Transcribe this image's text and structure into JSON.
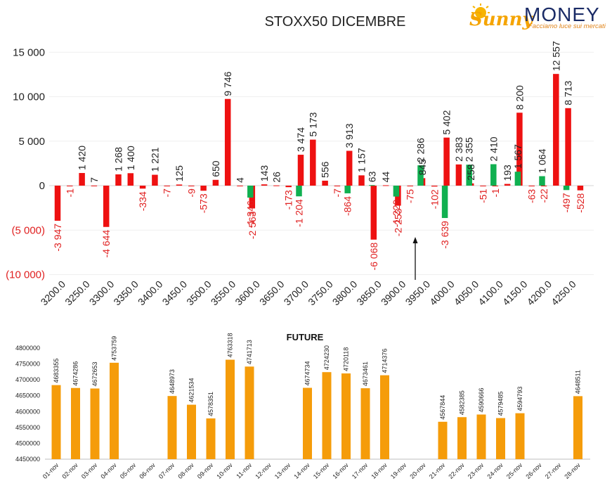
{
  "logo": {
    "brand_left": "Sunny",
    "brand_right": "MONEY",
    "tagline": "Facciamo luce sui mercati",
    "colors": {
      "sunny": "#f5a400",
      "money": "#1a2b66",
      "tagline": "#e0841a"
    }
  },
  "colors": {
    "positive_red": "#ee1111",
    "positive_green": "#10b050",
    "negative_label": "#e02020",
    "future_bar": "#f59c0a",
    "text": "#222222"
  },
  "chart_data": [
    {
      "type": "bar",
      "title": "STOXX50 DICEMBRE",
      "xlabel": "",
      "ylabel": "",
      "ylim": [
        -10000,
        15000
      ],
      "y_ticks": [
        "15 000",
        "10 000",
        "5 000",
        "0",
        "(5 000)",
        "(10 000)"
      ],
      "y_tick_values": [
        15000,
        10000,
        5000,
        0,
        -5000,
        -10000
      ],
      "x_tick_labels": [
        "3200.0",
        "3250.0",
        "3300.0",
        "3350.0",
        "3400.0",
        "3450.0",
        "3500.0",
        "3550.0",
        "3600.0",
        "3650.0",
        "3700.0",
        "3750.0",
        "3800.0",
        "3850.0",
        "3900.0",
        "3950.0",
        "4000.0",
        "4050.0",
        "4100.0",
        "4150.0",
        "4200.0",
        "4250.0"
      ],
      "grid": true,
      "legend": "none",
      "annotation": "arrow pointing at 3950.0",
      "series": [
        {
          "color": "red",
          "strikes": [
            3200,
            3225,
            3250,
            3275,
            3300,
            3325,
            3350,
            3375,
            3400,
            3425,
            3450,
            3475,
            3500,
            3525,
            3550,
            3575,
            3600,
            3625,
            3650,
            3675,
            3700,
            3725,
            3750,
            3775,
            3800,
            3825,
            3850,
            3875,
            3900,
            3925,
            3950,
            3975,
            4000,
            4025,
            4050,
            4075,
            4100,
            4125,
            4150,
            4175,
            4200,
            4225,
            4250,
            4275
          ],
          "values": [
            -3947,
            -1,
            1420,
            7,
            -4644,
            1268,
            1400,
            -334,
            1221,
            -7,
            125,
            -9,
            -573,
            650,
            9746,
            4,
            -2563,
            143,
            26,
            -173,
            3474,
            5173,
            556,
            -7,
            3913,
            1157,
            -6068,
            44,
            -2253,
            -75,
            845,
            -102,
            5402,
            2383,
            258,
            -51,
            -1,
            193,
            8200,
            -63,
            -22,
            12557,
            8713,
            -528
          ],
          "labels": [
            "-3 947",
            "-1",
            "1 420",
            "7",
            "-4 644",
            "1 268",
            "1 400",
            "-334",
            "1 221",
            "-7",
            "125",
            "-9",
            "-573",
            "650",
            "9 746",
            "4",
            "-2 563",
            "143",
            "26",
            "-173",
            "3 474",
            "5 173",
            "556",
            "-7",
            "3 913",
            "1 157",
            "-6 068",
            "44",
            "-2 253",
            "-75",
            "845",
            "-102",
            "5 402",
            "2 383",
            "258",
            "-51",
            "-1",
            "193",
            "8 200",
            "-63",
            "-22",
            "12 557",
            "8 713",
            "-528"
          ]
        },
        {
          "color": "green",
          "strikes": [
            3600,
            3700,
            3800,
            3850,
            3900,
            3950,
            4000,
            4050,
            4100,
            4150,
            4200,
            4250
          ],
          "values": [
            -1346,
            -1204,
            -864,
            63,
            -1229,
            2286,
            -3639,
            2355,
            2410,
            1567,
            1064,
            -497
          ],
          "labels": [
            "-1 346",
            "-1 204",
            "-864",
            "63",
            "-1 229",
            "2 286",
            "-3 639",
            "2 355",
            "2 410",
            "1 567",
            "1 064",
            "-497"
          ]
        }
      ]
    },
    {
      "type": "bar",
      "title": "FUTURE",
      "xlabel": "",
      "ylabel": "",
      "ylim": [
        4450000,
        4800000
      ],
      "y_ticks": [
        "4800000",
        "4750000",
        "4700000",
        "4650000",
        "4600000",
        "4550000",
        "4500000",
        "4450000"
      ],
      "y_tick_values": [
        4800000,
        4750000,
        4700000,
        4650000,
        4600000,
        4550000,
        4500000,
        4450000
      ],
      "grid": false,
      "legend": "none",
      "categories": [
        "01-nov",
        "02-nov",
        "03-nov",
        "04-nov",
        "05-nov",
        "06-nov",
        "07-nov",
        "08-nov",
        "09-nov",
        "10-nov",
        "11-nov",
        "12-nov",
        "13-nov",
        "14-nov",
        "15-nov",
        "16-nov",
        "17-nov",
        "18-nov",
        "19-nov",
        "20-nov",
        "21-nov",
        "22-nov",
        "23-nov",
        "24-nov",
        "25-nov",
        "26-nov",
        "27-nov",
        "28-nov"
      ],
      "values": [
        4683355,
        4674286,
        4672653,
        4753759,
        null,
        null,
        4648973,
        4621534,
        4578351,
        4763318,
        4741713,
        null,
        null,
        4674734,
        4724230,
        4720118,
        4673461,
        4714376,
        null,
        null,
        4567844,
        4582385,
        4590666,
        4579485,
        4594793,
        null,
        null,
        4648511
      ],
      "labels": [
        "4683355",
        "4674286",
        "4672653",
        "4753759",
        "",
        "",
        "4648973",
        "4621534",
        "4578351",
        "4763318",
        "4741713",
        "",
        "",
        "4674734",
        "4724230",
        "4720118",
        "4673461",
        "4714376",
        "",
        "",
        "4567844",
        "4582385",
        "4590666",
        "4579485",
        "4594793",
        "",
        "",
        "4648511"
      ]
    }
  ]
}
